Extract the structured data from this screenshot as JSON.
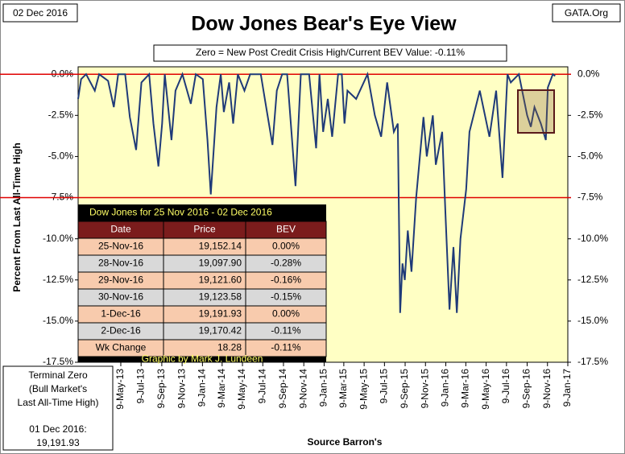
{
  "chart_data": {
    "type": "line",
    "title": "Dow Jones Bear's Eye View",
    "subtitle": "Zero = New Post Credit Crisis High/Current BEV Value:  -0.11%",
    "date_stamp": "02 Dec 2016",
    "source_site": "GATA.Org",
    "ylabel": "Percent From Last All-Time High",
    "xlabel": "Source Barron's",
    "note": [
      "Terminal Zero",
      "(Bull Market's",
      "Last All-Time High)",
      "01 Dec 2016:",
      "19,191.93"
    ],
    "ylim": [
      -17.5,
      0.45
    ],
    "yticks": [
      {
        "value": 0,
        "label": "0.0%"
      },
      {
        "value": -2.5,
        "label": "-2.5%"
      },
      {
        "value": -5,
        "label": "-5.0%"
      },
      {
        "value": -7.5,
        "label": "-7.5%"
      },
      {
        "value": -10,
        "label": "-10.0%"
      },
      {
        "value": -12.5,
        "label": "-12.5%"
      },
      {
        "value": -15,
        "label": "-15.0%"
      },
      {
        "value": -17.5,
        "label": "-17.5%"
      }
    ],
    "xlim": [
      "2013-01-01",
      "2017-01-09"
    ],
    "xticks": [
      {
        "value": "2013-05-09",
        "label": "9-May-13"
      },
      {
        "value": "2013-07-09",
        "label": "9-Jul-13"
      },
      {
        "value": "2013-09-09",
        "label": "9-Sep-13"
      },
      {
        "value": "2013-11-09",
        "label": "9-Nov-13"
      },
      {
        "value": "2014-01-09",
        "label": "9-Jan-14"
      },
      {
        "value": "2014-03-09",
        "label": "9-Mar-14"
      },
      {
        "value": "2014-05-09",
        "label": "9-May-14"
      },
      {
        "value": "2014-07-09",
        "label": "9-Jul-14"
      },
      {
        "value": "2014-09-09",
        "label": "9-Sep-14"
      },
      {
        "value": "2014-11-09",
        "label": "9-Nov-14"
      },
      {
        "value": "2015-01-09",
        "label": "9-Jan-15"
      },
      {
        "value": "2015-03-09",
        "label": "9-Mar-15"
      },
      {
        "value": "2015-05-09",
        "label": "9-May-15"
      },
      {
        "value": "2015-07-09",
        "label": "9-Jul-15"
      },
      {
        "value": "2015-09-09",
        "label": "9-Sep-15"
      },
      {
        "value": "2015-11-09",
        "label": "9-Nov-15"
      },
      {
        "value": "2016-01-09",
        "label": "9-Jan-16"
      },
      {
        "value": "2016-03-09",
        "label": "9-Mar-16"
      },
      {
        "value": "2016-05-09",
        "label": "9-May-16"
      },
      {
        "value": "2016-07-09",
        "label": "9-Jul-16"
      },
      {
        "value": "2016-09-09",
        "label": "9-Sep-16"
      },
      {
        "value": "2016-11-09",
        "label": "9-Nov-16"
      },
      {
        "value": "2017-01-09",
        "label": "9-Jan-17"
      }
    ],
    "reference_lines": [
      0,
      -7.5
    ],
    "reference_color": "#e00000",
    "plot_background": "#ffffc4",
    "series": [
      {
        "color": "#1f3a78",
        "x": [
          "2013-01-01",
          "2013-01-10",
          "2013-01-25",
          "2013-02-20",
          "2013-03-05",
          "2013-04-01",
          "2013-04-18",
          "2013-05-01",
          "2013-05-22",
          "2013-06-05",
          "2013-06-24",
          "2013-07-10",
          "2013-08-02",
          "2013-08-15",
          "2013-08-30",
          "2013-09-10",
          "2013-09-18",
          "2013-10-08",
          "2013-10-20",
          "2013-11-10",
          "2013-12-05",
          "2013-12-20",
          "2014-01-10",
          "2014-01-24",
          "2014-02-03",
          "2014-02-20",
          "2014-03-05",
          "2014-03-14",
          "2014-03-30",
          "2014-04-11",
          "2014-04-25",
          "2014-05-15",
          "2014-06-01",
          "2014-07-03",
          "2014-07-15",
          "2014-08-07",
          "2014-08-20",
          "2014-09-05",
          "2014-09-20",
          "2014-10-01",
          "2014-10-15",
          "2014-10-31",
          "2014-11-25",
          "2014-12-16",
          "2014-12-26",
          "2015-01-06",
          "2015-01-20",
          "2015-02-02",
          "2015-02-20",
          "2015-03-03",
          "2015-03-11",
          "2015-03-20",
          "2015-04-15",
          "2015-05-19",
          "2015-06-10",
          "2015-06-29",
          "2015-07-17",
          "2015-08-06",
          "2015-08-18",
          "2015-08-25",
          "2015-09-01",
          "2015-09-08",
          "2015-09-17",
          "2015-09-28",
          "2015-10-12",
          "2015-11-03",
          "2015-11-13",
          "2015-12-01",
          "2015-12-10",
          "2015-12-29",
          "2016-01-08",
          "2016-01-20",
          "2016-02-01",
          "2016-02-11",
          "2016-02-22",
          "2016-03-10",
          "2016-03-20",
          "2016-04-20",
          "2016-05-19",
          "2016-06-08",
          "2016-06-27",
          "2016-07-12",
          "2016-07-22",
          "2016-08-15",
          "2016-09-09",
          "2016-09-20",
          "2016-10-01",
          "2016-10-20",
          "2016-11-04",
          "2016-11-10",
          "2016-11-25",
          "2016-12-02"
        ],
        "values": [
          -1.5,
          -0.3,
          0,
          -1.0,
          0,
          -0.4,
          -2.0,
          0,
          0,
          -2.6,
          -4.6,
          -0.5,
          0,
          -3.0,
          -5.6,
          -3.0,
          0,
          -4.0,
          -1.0,
          0,
          -1.8,
          0,
          -0.3,
          -4.0,
          -7.3,
          -2.0,
          0,
          -2.3,
          -0.5,
          -3.0,
          0,
          -1.0,
          0,
          0,
          -1.5,
          -4.3,
          -1.0,
          0,
          0,
          -3.0,
          -6.8,
          0,
          0,
          -4.5,
          0,
          -3.5,
          -1.5,
          -3.8,
          0,
          0,
          -3.0,
          -1.0,
          -1.5,
          0,
          -2.5,
          -3.8,
          -0.5,
          -3.5,
          -3.0,
          -14.5,
          -11.5,
          -12.5,
          -9.5,
          -12.0,
          -7.5,
          -2.6,
          -5.0,
          -2.5,
          -5.5,
          -3.5,
          -8.5,
          -14.3,
          -10.5,
          -14.5,
          -10.0,
          -7.0,
          -3.5,
          -1.0,
          -3.8,
          -1.0,
          -6.3,
          0,
          -0.5,
          0,
          -2.5,
          -3.2,
          -2.0,
          -3.0,
          -4.0,
          -0.8,
          0,
          -0.11
        ]
      }
    ]
  },
  "table": {
    "title": "Dow Jones for  25 Nov 2016 - 02 Dec 2016",
    "columns": [
      "Date",
      "Price",
      "BEV"
    ],
    "rows": [
      [
        "25-Nov-16",
        "19,152.14",
        "0.00%"
      ],
      [
        "28-Nov-16",
        "19,097.90",
        "-0.28%"
      ],
      [
        "29-Nov-16",
        "19,121.60",
        "-0.16%"
      ],
      [
        "30-Nov-16",
        "19,123.58",
        "-0.15%"
      ],
      [
        "1-Dec-16",
        "19,191.93",
        "0.00%"
      ],
      [
        "2-Dec-16",
        "19,170.42",
        "-0.11%"
      ],
      [
        "Wk Change",
        "18.28",
        "-0.11%"
      ]
    ],
    "footer": "Graphic by Mark J. Lundeen"
  }
}
